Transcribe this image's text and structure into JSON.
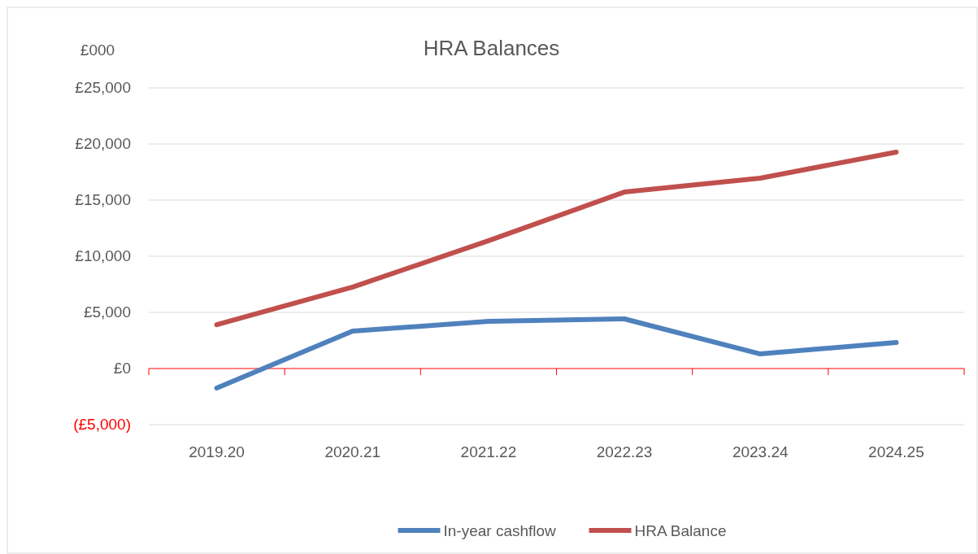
{
  "chart_data": {
    "type": "line",
    "title": "HRA Balances",
    "ylabel": "£000",
    "categories": [
      "2019.20",
      "2020.21",
      "2021.22",
      "2022.23",
      "2023.24",
      "2024.25"
    ],
    "series": [
      {
        "name": "In-year cashflow",
        "color": "#4f81bd",
        "values": [
          -1740,
          3330,
          4200,
          4420,
          1300,
          2320
        ]
      },
      {
        "name": "HRA Balance",
        "color": "#c0504d",
        "values": [
          3900,
          7250,
          11380,
          15720,
          16960,
          19280
        ]
      }
    ],
    "ylim": [
      -5000,
      25000
    ],
    "yticks": [
      {
        "value": -5000,
        "label": "(£5,000)"
      },
      {
        "value": 0,
        "label": "£0"
      },
      {
        "value": 5000,
        "label": "£5,000"
      },
      {
        "value": 10000,
        "label": "£10,000"
      },
      {
        "value": 15000,
        "label": "£15,000"
      },
      {
        "value": 20000,
        "label": "£20,000"
      },
      {
        "value": 25000,
        "label": "£25,000"
      }
    ],
    "ref_lines": [
      {
        "axis": "y",
        "value": 0,
        "color": "#ff0000"
      }
    ],
    "grid": "y",
    "legend": "bottom",
    "marker": "none",
    "line_style": "solid"
  }
}
